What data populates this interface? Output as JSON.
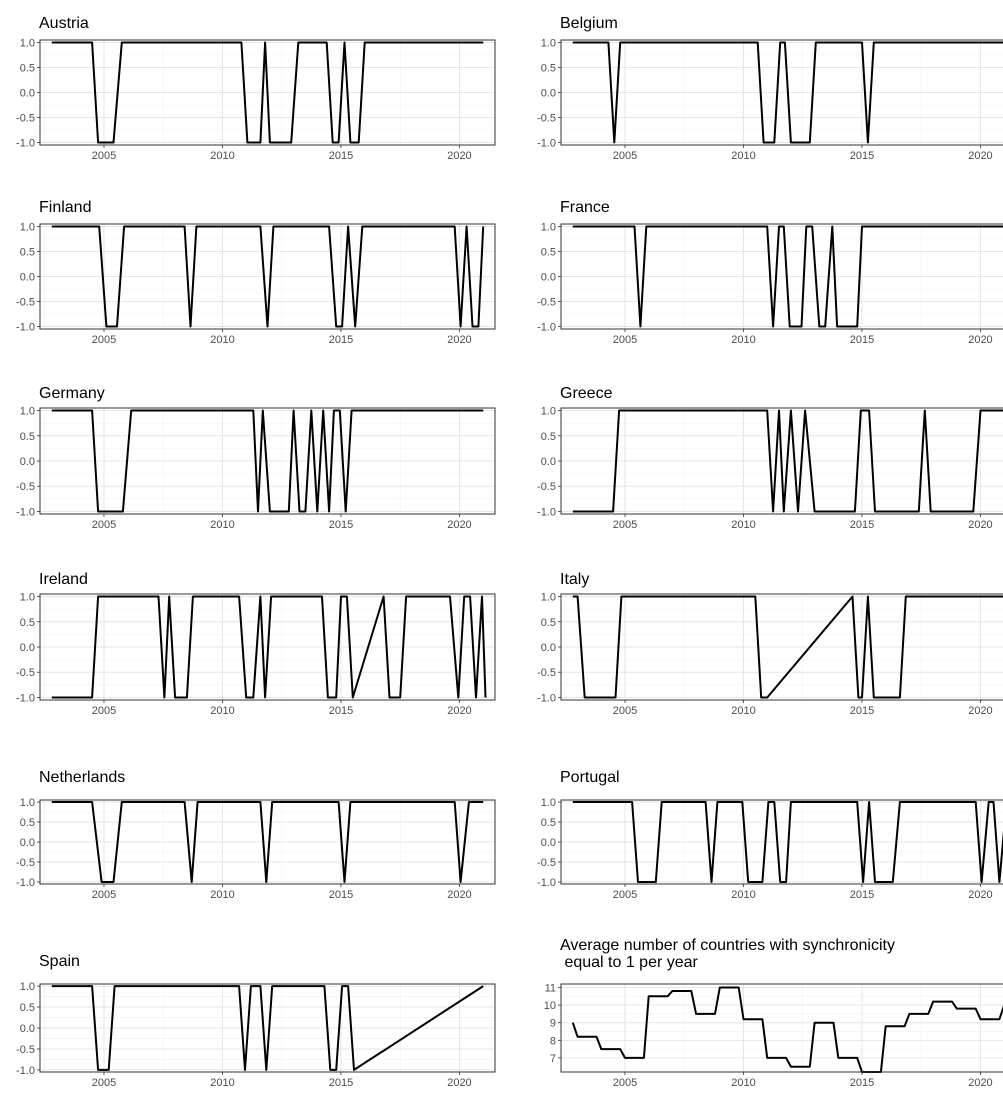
{
  "chart_data": [
    {
      "type": "line",
      "title": "Austria",
      "xlabel": "",
      "ylabel": "",
      "xlim": [
        2002.3,
        2021.5
      ],
      "ylim": [
        -1.05,
        1.05
      ],
      "x_ticks": [
        "2005",
        "2010",
        "2015",
        "2020"
      ],
      "y_ticks": [
        "1.0",
        "0.5",
        "0.0",
        "-0.5",
        "-1.0"
      ],
      "grid": true,
      "x": [
        2002.8,
        2004.5,
        2004.75,
        2005.4,
        2005.75,
        2010.8,
        2011.05,
        2011.6,
        2011.8,
        2012.0,
        2012.2,
        2012.9,
        2013.2,
        2014.4,
        2014.65,
        2014.9,
        2015.15,
        2015.4,
        2015.75,
        2016.0,
        2021.0
      ],
      "values": [
        1,
        1,
        -1,
        -1,
        1,
        1,
        -1,
        -1,
        1,
        -1,
        -1,
        -1,
        1,
        1,
        -1,
        -1,
        1,
        -1,
        -1,
        1,
        1
      ]
    },
    {
      "type": "line",
      "title": "Belgium",
      "xlabel": "",
      "ylabel": "",
      "xlim": [
        2002.3,
        2021.5
      ],
      "ylim": [
        -1.05,
        1.05
      ],
      "x_ticks": [
        "2005",
        "2010",
        "2015",
        "2020"
      ],
      "y_ticks": [
        "1.0",
        "0.5",
        "0.0",
        "-0.5",
        "-1.0"
      ],
      "grid": true,
      "x": [
        2002.8,
        2004.3,
        2004.55,
        2004.8,
        2010.6,
        2010.85,
        2011.3,
        2011.55,
        2011.75,
        2012.0,
        2012.8,
        2013.05,
        2015.0,
        2015.25,
        2015.5,
        2021.0
      ],
      "values": [
        1,
        1,
        -1,
        1,
        1,
        -1,
        -1,
        1,
        1,
        -1,
        -1,
        1,
        1,
        -1,
        1,
        1
      ]
    },
    {
      "type": "line",
      "title": "Finland",
      "xlabel": "",
      "ylabel": "",
      "xlim": [
        2002.3,
        2021.5
      ],
      "ylim": [
        -1.05,
        1.05
      ],
      "x_ticks": [
        "2005",
        "2010",
        "2015",
        "2020"
      ],
      "y_ticks": [
        "1.0",
        "0.5",
        "0.0",
        "-0.5",
        "-1.0"
      ],
      "grid": true,
      "x": [
        2002.8,
        2004.8,
        2005.1,
        2005.55,
        2005.85,
        2008.4,
        2008.65,
        2008.9,
        2011.6,
        2011.9,
        2012.15,
        2014.5,
        2014.8,
        2015.05,
        2015.3,
        2015.6,
        2015.9,
        2019.8,
        2020.05,
        2020.3,
        2020.55,
        2020.8,
        2021.0
      ],
      "values": [
        1,
        1,
        -1,
        -1,
        1,
        1,
        -1,
        1,
        1,
        -1,
        1,
        1,
        -1,
        -1,
        1,
        -1,
        1,
        1,
        -1,
        1,
        -1,
        -1,
        1
      ]
    },
    {
      "type": "line",
      "title": "France",
      "xlabel": "",
      "ylabel": "",
      "xlim": [
        2002.3,
        2021.5
      ],
      "ylim": [
        -1.05,
        1.05
      ],
      "x_ticks": [
        "2005",
        "2010",
        "2015",
        "2020"
      ],
      "y_ticks": [
        "1.0",
        "0.5",
        "0.0",
        "-0.5",
        "-1.0"
      ],
      "grid": true,
      "x": [
        2002.8,
        2005.4,
        2005.65,
        2005.9,
        2011.0,
        2011.25,
        2011.5,
        2011.7,
        2011.95,
        2012.45,
        2012.65,
        2012.9,
        2013.2,
        2013.45,
        2013.75,
        2013.95,
        2014.3,
        2014.8,
        2015.0,
        2021.0
      ],
      "values": [
        1,
        1,
        -1,
        1,
        1,
        -1,
        1,
        1,
        -1,
        -1,
        1,
        1,
        -1,
        -1,
        1,
        -1,
        -1,
        -1,
        1,
        1
      ]
    },
    {
      "type": "line",
      "title": "Germany",
      "xlabel": "",
      "ylabel": "",
      "xlim": [
        2002.3,
        2021.5
      ],
      "ylim": [
        -1.05,
        1.05
      ],
      "x_ticks": [
        "2005",
        "2010",
        "2015",
        "2020"
      ],
      "y_ticks": [
        "1.0",
        "0.5",
        "0.0",
        "-0.5",
        "-1.0"
      ],
      "grid": true,
      "x": [
        2002.8,
        2004.5,
        2004.75,
        2005.8,
        2006.15,
        2011.3,
        2011.5,
        2011.7,
        2012.0,
        2012.8,
        2013.0,
        2013.25,
        2013.5,
        2013.75,
        2014.0,
        2014.25,
        2014.5,
        2014.7,
        2014.95,
        2015.2,
        2015.45,
        2021.0
      ],
      "values": [
        1,
        1,
        -1,
        -1,
        1,
        1,
        -1,
        1,
        -1,
        -1,
        1,
        -1,
        -1,
        1,
        -1,
        1,
        -1,
        1,
        1,
        -1,
        1,
        1
      ]
    },
    {
      "type": "line",
      "title": "Greece",
      "xlabel": "",
      "ylabel": "",
      "xlim": [
        2002.3,
        2021.5
      ],
      "ylim": [
        -1.05,
        1.05
      ],
      "x_ticks": [
        "2005",
        "2010",
        "2015",
        "2020"
      ],
      "y_ticks": [
        "1.0",
        "0.5",
        "0.0",
        "-0.5",
        "-1.0"
      ],
      "grid": true,
      "x": [
        2002.8,
        2004.5,
        2004.75,
        2011.0,
        2011.25,
        2011.5,
        2011.7,
        2012.0,
        2012.3,
        2012.6,
        2013.0,
        2014.7,
        2014.95,
        2015.3,
        2015.55,
        2017.4,
        2017.65,
        2017.9,
        2018.15,
        2019.7,
        2020.0,
        2021.0
      ],
      "values": [
        -1,
        -1,
        1,
        1,
        -1,
        1,
        -1,
        1,
        -1,
        1,
        -1,
        -1,
        1,
        1,
        -1,
        -1,
        1,
        -1,
        -1,
        -1,
        1,
        1
      ]
    },
    {
      "type": "line",
      "title": "Ireland",
      "xlabel": "",
      "ylabel": "",
      "xlim": [
        2002.3,
        2021.5
      ],
      "ylim": [
        -1.05,
        1.05
      ],
      "x_ticks": [
        "2005",
        "2010",
        "2015",
        "2020"
      ],
      "y_ticks": [
        "1.0",
        "0.5",
        "0.0",
        "-0.5",
        "-1.0"
      ],
      "grid": true,
      "x": [
        2002.8,
        2004.5,
        2004.75,
        2007.3,
        2007.55,
        2007.75,
        2008.0,
        2008.5,
        2008.75,
        2010.7,
        2011.0,
        2011.3,
        2011.6,
        2011.8,
        2012.05,
        2014.2,
        2014.45,
        2014.8,
        2015.0,
        2015.25,
        2015.5,
        2016.8,
        2017.05,
        2017.5,
        2017.75,
        2019.6,
        2019.95,
        2020.2,
        2020.45,
        2020.7,
        2020.95,
        2021.1
      ],
      "values": [
        -1,
        -1,
        1,
        1,
        -1,
        1,
        -1,
        -1,
        1,
        1,
        -1,
        -1,
        1,
        -1,
        1,
        1,
        -1,
        -1,
        1,
        1,
        -1,
        1,
        -1,
        -1,
        1,
        1,
        -1,
        1,
        1,
        -1,
        1,
        -1
      ]
    },
    {
      "type": "line",
      "title": "Italy",
      "xlabel": "",
      "ylabel": "",
      "xlim": [
        2002.3,
        2021.5
      ],
      "ylim": [
        -1.05,
        1.05
      ],
      "x_ticks": [
        "2005",
        "2010",
        "2015",
        "2020"
      ],
      "y_ticks": [
        "1.0",
        "0.5",
        "0.0",
        "-0.5",
        "-1.0"
      ],
      "grid": true,
      "x": [
        2002.8,
        2003.0,
        2003.3,
        2004.6,
        2004.85,
        2010.5,
        2010.75,
        2011.0,
        2014.6,
        2014.85,
        2015.0,
        2015.25,
        2015.5,
        2016.6,
        2016.85,
        2021.0
      ],
      "values": [
        1,
        1,
        -1,
        -1,
        1,
        1,
        -1,
        -1,
        1,
        -1,
        -1,
        1,
        -1,
        -1,
        1,
        1
      ]
    },
    {
      "type": "line",
      "title": "Netherlands",
      "xlabel": "",
      "ylabel": "",
      "xlim": [
        2002.3,
        2021.5
      ],
      "ylim": [
        -1.05,
        1.05
      ],
      "x_ticks": [
        "2005",
        "2010",
        "2015",
        "2020"
      ],
      "y_ticks": [
        "1.0",
        "0.5",
        "0.0",
        "-0.5",
        "-1.0"
      ],
      "grid": true,
      "x": [
        2002.8,
        2004.5,
        2004.9,
        2005.4,
        2005.75,
        2008.4,
        2008.7,
        2008.95,
        2011.6,
        2011.85,
        2012.1,
        2014.9,
        2015.15,
        2015.4,
        2019.8,
        2020.05,
        2020.4,
        2021.0
      ],
      "values": [
        1,
        1,
        -1,
        -1,
        1,
        1,
        -1,
        1,
        1,
        -1,
        1,
        1,
        -1,
        1,
        1,
        -1,
        1,
        1
      ]
    },
    {
      "type": "line",
      "title": "Portugal",
      "xlabel": "",
      "ylabel": "",
      "xlim": [
        2002.3,
        2021.5
      ],
      "ylim": [
        -1.05,
        1.05
      ],
      "x_ticks": [
        "2005",
        "2010",
        "2015",
        "2020"
      ],
      "y_ticks": [
        "1.0",
        "0.5",
        "0.0",
        "-0.5",
        "-1.0"
      ],
      "grid": true,
      "x": [
        2002.8,
        2005.3,
        2005.55,
        2006.3,
        2006.55,
        2008.4,
        2008.65,
        2008.9,
        2009.95,
        2010.2,
        2010.8,
        2011.05,
        2011.3,
        2011.55,
        2011.8,
        2012.0,
        2014.8,
        2015.05,
        2015.3,
        2015.55,
        2016.3,
        2016.6,
        2019.8,
        2020.05,
        2020.35,
        2020.55,
        2020.8,
        2021.1
      ],
      "values": [
        1,
        1,
        -1,
        -1,
        1,
        1,
        -1,
        1,
        1,
        -1,
        -1,
        1,
        1,
        -1,
        -1,
        1,
        1,
        -1,
        1,
        -1,
        -1,
        1,
        1,
        -1,
        1,
        1,
        -1,
        1
      ]
    },
    {
      "type": "line",
      "title": "Spain",
      "xlabel": "",
      "ylabel": "",
      "xlim": [
        2002.3,
        2021.5
      ],
      "ylim": [
        -1.05,
        1.05
      ],
      "x_ticks": [
        "2005",
        "2010",
        "2015",
        "2020"
      ],
      "y_ticks": [
        "1.0",
        "0.5",
        "0.0",
        "-0.5",
        "-1.0"
      ],
      "grid": true,
      "x": [
        2002.8,
        2004.5,
        2004.75,
        2005.2,
        2005.45,
        2010.7,
        2010.95,
        2011.2,
        2011.6,
        2011.85,
        2012.1,
        2014.3,
        2014.55,
        2014.8,
        2015.05,
        2015.3,
        2015.55,
        2021.0
      ],
      "values": [
        1,
        1,
        -1,
        -1,
        1,
        1,
        -1,
        1,
        1,
        -1,
        1,
        1,
        -1,
        -1,
        1,
        1,
        -1,
        1
      ]
    },
    {
      "type": "line",
      "title": "Average number of countries with synchronicity\n equal to 1 per year",
      "xlabel": "",
      "ylabel": "",
      "xlim": [
        2002.3,
        2021.5
      ],
      "ylim": [
        6.2,
        11.2
      ],
      "x_ticks": [
        "2005",
        "2010",
        "2015",
        "2020"
      ],
      "y_ticks": [
        "11",
        "10",
        "9",
        "8",
        "7"
      ],
      "grid": true,
      "x": [
        2002.8,
        2003.0,
        2003.8,
        2004.0,
        2004.8,
        2005.0,
        2005.8,
        2006.0,
        2006.8,
        2007.0,
        2007.8,
        2008.0,
        2008.8,
        2009.0,
        2009.8,
        2010.0,
        2010.8,
        2011.0,
        2011.8,
        2012.0,
        2012.8,
        2013.0,
        2013.8,
        2014.0,
        2014.8,
        2015.0,
        2015.8,
        2016.0,
        2016.8,
        2017.0,
        2017.8,
        2018.0,
        2018.8,
        2019.0,
        2019.8,
        2020.0,
        2020.8,
        2021.0
      ],
      "values": [
        9.0,
        8.2,
        8.2,
        7.5,
        7.5,
        7.0,
        7.0,
        10.5,
        10.5,
        10.8,
        10.8,
        9.5,
        9.5,
        11.0,
        11.0,
        9.2,
        9.2,
        7.0,
        7.0,
        6.5,
        6.5,
        9.0,
        9.0,
        7.0,
        7.0,
        6.2,
        6.2,
        8.8,
        8.8,
        9.5,
        9.5,
        10.2,
        10.2,
        9.8,
        9.8,
        9.2,
        9.2,
        10.0
      ]
    }
  ]
}
